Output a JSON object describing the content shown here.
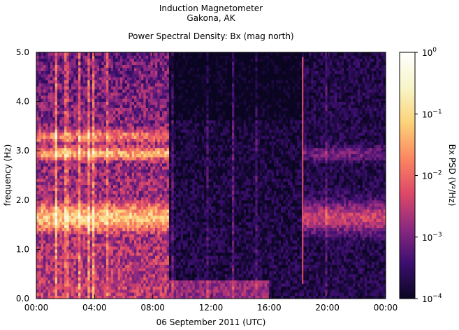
{
  "header": {
    "title_line1": "Induction Magnetometer",
    "title_line2": "Gakona, AK",
    "subtitle": "Power Spectral Density: Bx (mag north)"
  },
  "chart_data": {
    "type": "heatmap",
    "title": "Induction Magnetometer Gakona, AK",
    "subtitle": "Power Spectral Density: Bx (mag north)",
    "xlabel": "06 September 2011 (UTC)",
    "ylabel": "frequency (Hz)",
    "x_ticks": [
      "00:00",
      "04:00",
      "08:00",
      "12:00",
      "16:00",
      "20:00",
      "00:00"
    ],
    "x_range_hours": [
      0,
      24
    ],
    "y_ticks": [
      "0.0",
      "1.0",
      "2.0",
      "3.0",
      "4.0",
      "5.0"
    ],
    "ylim": [
      0,
      5
    ],
    "colorbar": {
      "label": "Bx PSD (V²/Hz)",
      "scale": "log",
      "range": [
        0.0001,
        1
      ],
      "ticks": [
        {
          "value": 1,
          "base": "10",
          "exp": "0"
        },
        {
          "value": 0.1,
          "base": "10",
          "exp": "−1"
        },
        {
          "value": 0.01,
          "base": "10",
          "exp": "−2"
        },
        {
          "value": 0.001,
          "base": "10",
          "exp": "−3"
        },
        {
          "value": 0.0001,
          "base": "10",
          "exp": "−4"
        }
      ],
      "colors": [
        "#0a0521",
        "#3b0f6f",
        "#8c2981",
        "#de4968",
        "#fb8761",
        "#fcd37a",
        "#f7f5c8",
        "#ffffff"
      ]
    },
    "features": [
      {
        "name": "1.65 Hz band",
        "freq_hz": 1.65,
        "hours": [
          0,
          9.2
        ],
        "log_psd": -1.2
      },
      {
        "name": "2.95 Hz band",
        "freq_hz": 2.95,
        "hours": [
          0,
          9.2
        ],
        "log_psd": -1.4
      },
      {
        "name": "3.3 Hz band",
        "freq_hz": 3.3,
        "hours": [
          0,
          9.2
        ],
        "log_psd": -1.8
      },
      {
        "name": "1.65 Hz band (late)",
        "freq_hz": 1.65,
        "hours": [
          18.3,
          24
        ],
        "log_psd": -2.4
      },
      {
        "name": "2.95 Hz band (late)",
        "freq_hz": 2.95,
        "hours": [
          18.3,
          24
        ],
        "log_psd": -3.0
      },
      {
        "name": "vertical line",
        "hour": 18.3,
        "freq_range_hz": [
          0.3,
          4.9
        ],
        "log_psd": -2.2
      }
    ]
  }
}
